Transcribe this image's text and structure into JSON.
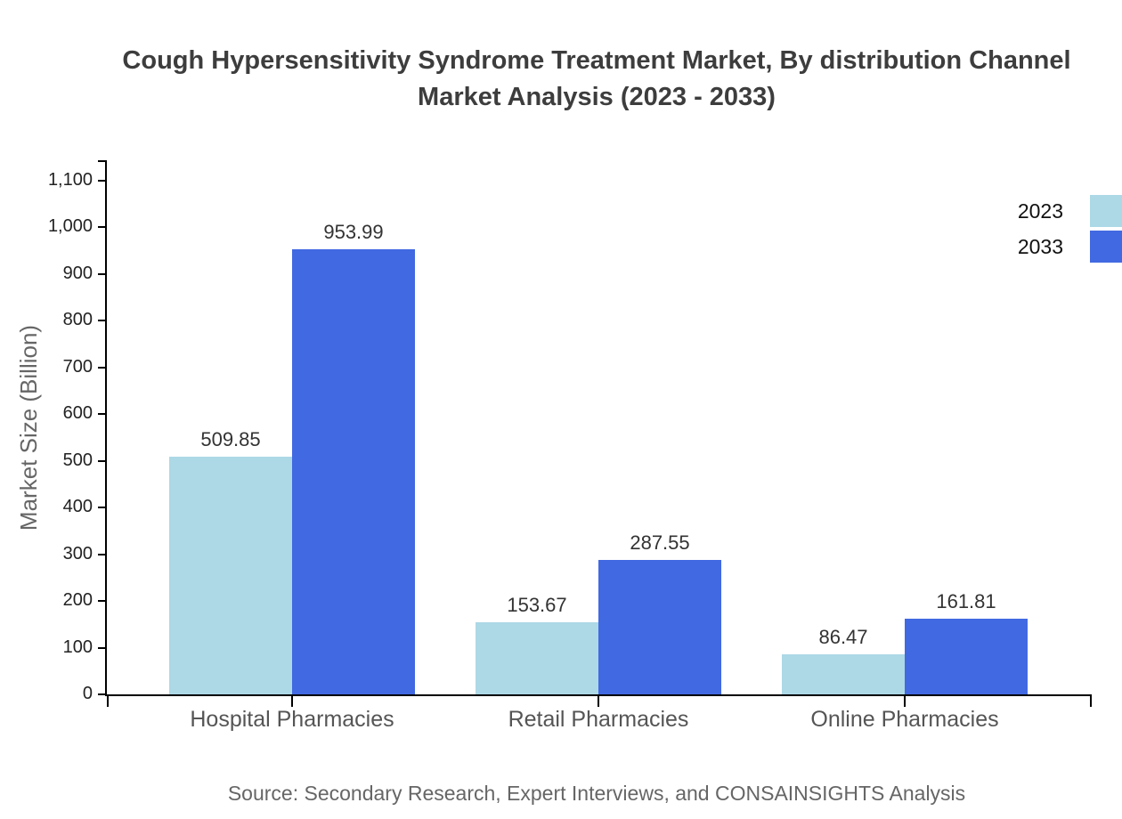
{
  "title": {
    "line1": "Cough Hypersensitivity Syndrome Treatment Market, By distribution Channel",
    "line2": "Market Analysis (2023 - 2033)"
  },
  "source": "Source: Secondary Research, Expert Interviews, and CONSAINSIGHTS Analysis",
  "chart_data": {
    "type": "bar",
    "title": "Cough Hypersensitivity Syndrome Treatment Market, By distribution Channel Market Analysis (2023 - 2033)",
    "categories": [
      "Hospital Pharmacies",
      "Retail Pharmacies",
      "Online Pharmacies"
    ],
    "series": [
      {
        "name": "2023",
        "color": "#ADD8E6",
        "values": [
          509.85,
          153.67,
          86.47
        ]
      },
      {
        "name": "2033",
        "color": "#4169E1",
        "values": [
          953.99,
          287.55,
          161.81
        ]
      }
    ],
    "xlabel": "",
    "ylabel": "Market Size (Billion)",
    "ylim": [
      0,
      1100
    ],
    "ytick_step": 100,
    "ytick_format": "thousands-comma",
    "grid": false,
    "value_labels": true,
    "legend_position": "top-right",
    "axis_color": "#000000",
    "value_label_color": "#333333",
    "tick_label_color": "#222222",
    "category_label_color": "#555555"
  }
}
